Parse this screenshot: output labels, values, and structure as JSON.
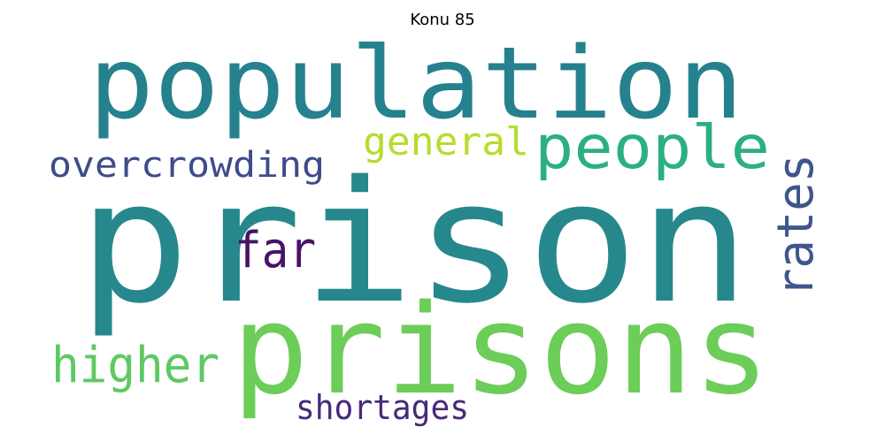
{
  "title": "Konu 85",
  "words": [
    {
      "text": "prison",
      "color": "#26888c"
    },
    {
      "text": "population",
      "color": "#26818e"
    },
    {
      "text": "prisons",
      "color": "#6ccd59"
    },
    {
      "text": "people",
      "color": "#2bb07f"
    },
    {
      "text": "general",
      "color": "#b5dd2b"
    },
    {
      "text": "overcrowding",
      "color": "#3e4c8a"
    },
    {
      "text": "far",
      "color": "#471365"
    },
    {
      "text": "rates",
      "color": "#3f568a"
    },
    {
      "text": "higher",
      "color": "#5ec962"
    },
    {
      "text": "shortages",
      "color": "#472a7a"
    }
  ]
}
